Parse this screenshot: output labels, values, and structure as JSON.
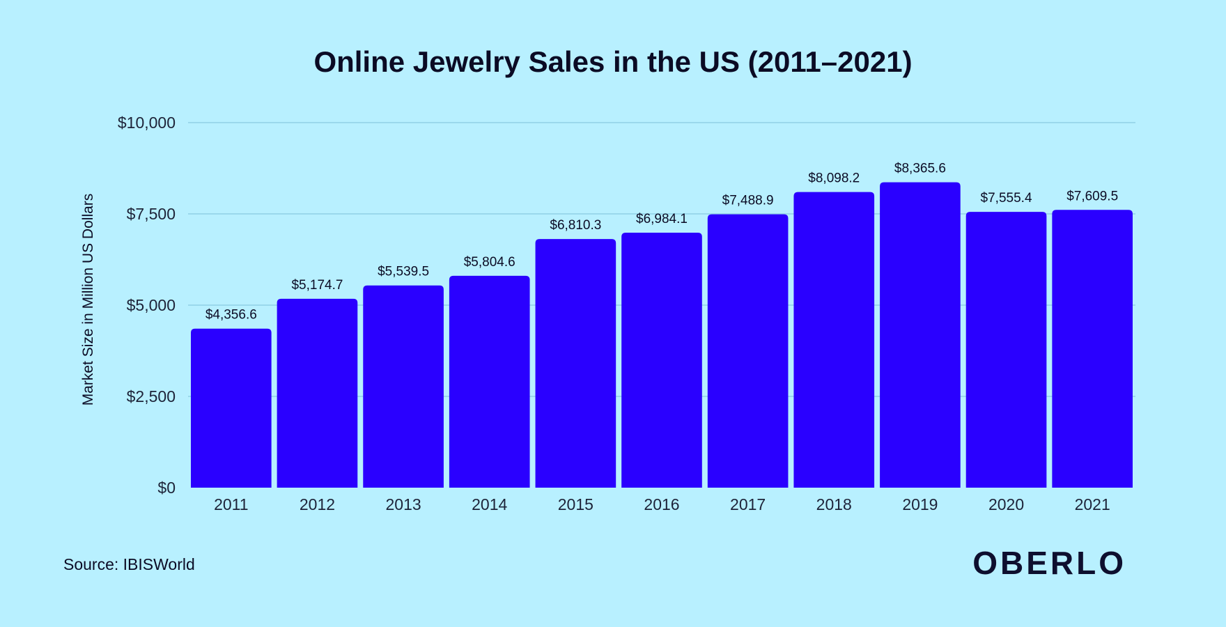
{
  "chart_data": {
    "type": "bar",
    "title": "Online Jewelry Sales in the US (2011–2021)",
    "xlabel": "",
    "ylabel": "Market Size in Million US Dollars",
    "categories": [
      "2011",
      "2012",
      "2013",
      "2014",
      "2015",
      "2016",
      "2017",
      "2018",
      "2019",
      "2020",
      "2021"
    ],
    "values": [
      4356.6,
      5174.7,
      5539.5,
      5804.6,
      6810.3,
      6984.1,
      7488.9,
      8098.2,
      8365.6,
      7555.4,
      7609.5
    ],
    "value_labels": [
      "$4,356.6",
      "$5,174.7",
      "$5,539.5",
      "$5,804.6",
      "$6,810.3",
      "$6,984.1",
      "$7,488.9",
      "$8,098.2",
      "$8,365.6",
      "$7,555.4",
      "$7,609.5"
    ],
    "ylim": [
      0,
      10000
    ],
    "yticks": [
      0,
      2500,
      5000,
      7500,
      10000
    ],
    "ytick_labels": [
      "$0",
      "$2,500",
      "$5,000",
      "$7,500",
      "$10,000"
    ],
    "grid": true,
    "legend": "none",
    "colors": {
      "bar": "#2a00ff",
      "background": "#b8f0ff",
      "grid": "#8fcfe6",
      "text": "#0b0b24"
    }
  },
  "footer": {
    "source": "Source: IBISWorld",
    "logo": "OBERLO"
  }
}
